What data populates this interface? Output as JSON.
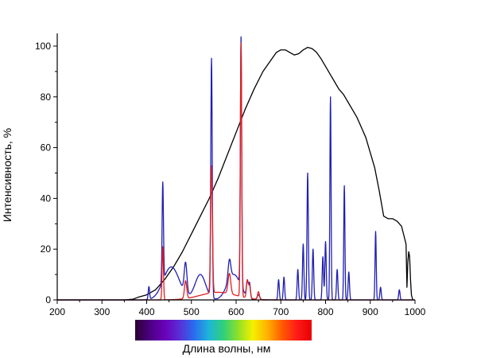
{
  "chart_data": {
    "type": "line",
    "title": "",
    "xlabel": "Длина волны, нм",
    "ylabel": "Интенсивность, %",
    "xlim": [
      200,
      1000
    ],
    "ylim": [
      0,
      105
    ],
    "x_ticks": [
      200,
      300,
      400,
      500,
      600,
      700,
      800,
      900,
      1000
    ],
    "y_ticks": [
      0,
      20,
      40,
      60,
      80,
      100
    ],
    "x_tick_labels": [
      "200",
      "300",
      "400",
      "500",
      "600",
      "700",
      "800",
      "900",
      "1000"
    ],
    "y_tick_labels": [
      "0",
      "20",
      "40",
      "60",
      "80",
      "100"
    ],
    "grid": false,
    "legend": "none",
    "colorbar": {
      "range_nm": [
        380,
        780
      ],
      "colors": [
        "#2a0033",
        "#4b0082",
        "#6a00b8",
        "#5a2dd6",
        "#2a6cf0",
        "#1fb4d9",
        "#2fd07a",
        "#8ee02a",
        "#f5f000",
        "#ffb000",
        "#ff5a00",
        "#ff1a1a",
        "#e80000"
      ]
    },
    "series": [
      {
        "color": "#000000",
        "x": [
          200,
          300,
          350,
          370,
          380,
          400,
          420,
          440,
          460,
          480,
          500,
          520,
          540,
          560,
          580,
          600,
          620,
          640,
          660,
          680,
          690,
          700,
          710,
          720,
          730,
          740,
          750,
          760,
          770,
          780,
          790,
          800,
          810,
          820,
          830,
          840,
          850,
          860,
          870,
          880,
          890,
          900,
          910,
          920,
          930,
          940,
          950,
          960,
          970,
          980,
          982,
          984,
          986,
          988,
          990,
          992,
          995
        ],
        "y": [
          0,
          0,
          0,
          0.3,
          1,
          2,
          4,
          8,
          13,
          19,
          26,
          33,
          40,
          48,
          57,
          66,
          75,
          83,
          90,
          95,
          97.5,
          98.5,
          98.5,
          97.5,
          96.5,
          97,
          98.5,
          99.5,
          99,
          97.5,
          95,
          92,
          89,
          86,
          83,
          81,
          78,
          75,
          72,
          68,
          64,
          58,
          52,
          43,
          33,
          32,
          32,
          31,
          29,
          22,
          5,
          15,
          19,
          17,
          8,
          2,
          0
        ]
      },
      {
        "color": "#1f1fb4",
        "peaks": [
          [
            405,
            5,
            1.5
          ],
          [
            436,
            39,
            1.5
          ],
          [
            487,
            12,
            3
          ],
          [
            545,
            94,
            1.6
          ],
          [
            585,
            8,
            3
          ],
          [
            611,
            98,
            1.5
          ],
          [
            625,
            6,
            2
          ],
          [
            630,
            6,
            2
          ],
          [
            650,
            2,
            3
          ],
          [
            695,
            8,
            1.5
          ],
          [
            707,
            9,
            1.5
          ],
          [
            738,
            12,
            1.5
          ],
          [
            750,
            22,
            1.5
          ],
          [
            760,
            50,
            1.5
          ],
          [
            772,
            20,
            1.5
          ],
          [
            794,
            17,
            1.5
          ],
          [
            800,
            23,
            1.5
          ],
          [
            811,
            80,
            1.3
          ],
          [
            826,
            12,
            1.5
          ],
          [
            842,
            45,
            1.3
          ],
          [
            852,
            11,
            1.5
          ],
          [
            912,
            27,
            1.3
          ],
          [
            923,
            5,
            1.5
          ],
          [
            965,
            4,
            1.5
          ]
        ],
        "broad": [
          [
            455,
            13,
            18
          ],
          [
            520,
            10,
            12
          ],
          [
            595,
            10,
            15
          ]
        ]
      },
      {
        "color": "#e02020",
        "peaks": [
          [
            436,
            21,
            1.5
          ],
          [
            487,
            7,
            2.5
          ],
          [
            545,
            50,
            2
          ],
          [
            585,
            8,
            3
          ],
          [
            611,
            100,
            1.5
          ],
          [
            625,
            7,
            2
          ],
          [
            630,
            5,
            2
          ],
          [
            650,
            3,
            2
          ]
        ],
        "broad": [
          [
            560,
            3,
            40
          ]
        ]
      }
    ]
  }
}
